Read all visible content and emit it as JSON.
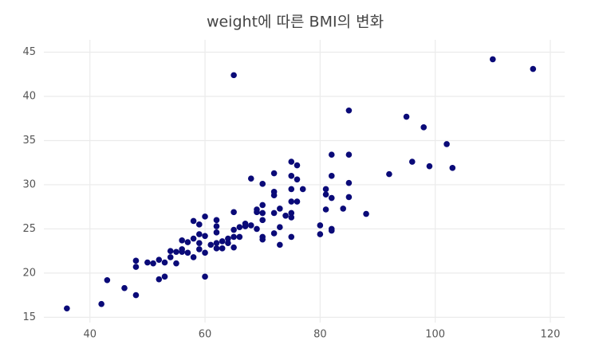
{
  "chart_data": {
    "type": "scatter",
    "title": "weight에 따른 BMI의 변화",
    "color": "#0a0a78",
    "grid": true,
    "xlim": [
      32,
      122.5
    ],
    "ylim": [
      14.4,
      46.4
    ],
    "xticks": [
      40,
      60,
      80,
      100,
      120
    ],
    "yticks": [
      15,
      20,
      25,
      30,
      35,
      40,
      45
    ],
    "x": [
      36,
      42,
      43,
      46,
      48,
      48,
      48,
      50,
      51,
      52,
      52,
      53,
      53,
      54,
      54,
      55,
      55,
      56,
      56,
      56,
      57,
      57,
      58,
      58,
      58,
      59,
      59,
      59,
      59,
      60,
      60,
      60,
      60,
      61,
      62,
      62,
      62,
      62,
      62,
      63,
      63,
      64,
      64,
      65,
      65,
      65,
      65,
      65,
      66,
      66,
      67,
      67,
      68,
      68,
      69,
      69,
      69,
      70,
      70,
      70,
      70,
      70,
      70,
      72,
      72,
      72,
      72,
      72,
      73,
      73,
      73,
      74,
      75,
      75,
      75,
      75,
      75,
      75,
      75,
      76,
      76,
      76,
      77,
      80,
      80,
      81,
      81,
      81,
      82,
      82,
      82,
      82,
      82,
      84,
      85,
      85,
      85,
      85,
      88,
      92,
      95,
      96,
      98,
      99,
      102,
      103,
      110,
      117
    ],
    "values": [
      16.0,
      16.5,
      19.2,
      18.3,
      17.5,
      21.4,
      20.7,
      21.2,
      21.1,
      21.5,
      19.3,
      19.6,
      21.2,
      21.8,
      22.5,
      21.1,
      22.4,
      22.7,
      23.7,
      22.4,
      23.5,
      22.3,
      21.8,
      23.9,
      25.9,
      25.5,
      24.4,
      23.4,
      22.7,
      19.6,
      22.3,
      24.2,
      26.4,
      23.2,
      26.0,
      25.3,
      24.6,
      23.4,
      22.8,
      22.8,
      23.6,
      23.9,
      23.4,
      22.9,
      24.1,
      24.9,
      26.9,
      42.4,
      25.2,
      24.1,
      25.3,
      25.6,
      30.7,
      25.4,
      25.0,
      26.9,
      27.2,
      23.8,
      24.1,
      26.0,
      26.8,
      27.7,
      30.1,
      24.5,
      26.8,
      28.8,
      29.2,
      31.3,
      23.2,
      25.2,
      27.3,
      26.5,
      24.1,
      26.3,
      26.8,
      28.1,
      29.5,
      31.0,
      32.6,
      28.1,
      30.6,
      32.2,
      29.5,
      25.4,
      24.4,
      27.2,
      28.9,
      29.5,
      24.8,
      25.0,
      28.5,
      31.0,
      33.4,
      27.3,
      28.6,
      30.2,
      33.4,
      38.4,
      26.7,
      31.2,
      37.7,
      32.6,
      36.5,
      32.1,
      34.6,
      31.9,
      44.2,
      43.1
    ]
  }
}
